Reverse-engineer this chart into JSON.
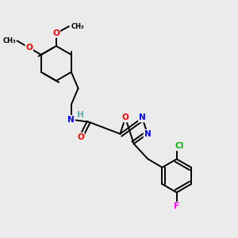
{
  "bg_color": "#ebebeb",
  "bond_color": "#000000",
  "atom_colors": {
    "O": "#ff0000",
    "N": "#0000ff",
    "Cl": "#00bb00",
    "F": "#ff00ff",
    "H": "#5aacac",
    "C": "#000000"
  },
  "figsize": [
    3.0,
    3.0
  ],
  "dpi": 100
}
